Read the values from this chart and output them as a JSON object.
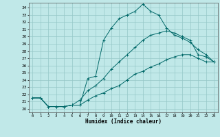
{
  "xlabel": "Humidex (Indice chaleur)",
  "bg_color": "#c0e8e8",
  "grid_color": "#96c8c8",
  "line_color": "#006868",
  "xlim": [
    -0.5,
    23.5
  ],
  "ylim": [
    19.5,
    34.7
  ],
  "xticks": [
    0,
    1,
    2,
    3,
    4,
    5,
    6,
    7,
    8,
    9,
    10,
    11,
    12,
    13,
    14,
    15,
    16,
    17,
    18,
    19,
    20,
    21,
    22,
    23
  ],
  "yticks": [
    20,
    21,
    22,
    23,
    24,
    25,
    26,
    27,
    28,
    29,
    30,
    31,
    32,
    33,
    34
  ],
  "line1_x": [
    0,
    1,
    2,
    3,
    4,
    5,
    6,
    7,
    8,
    9,
    10,
    11,
    12,
    13,
    14,
    15,
    16,
    17,
    18,
    19,
    20,
    21,
    22,
    23
  ],
  "line1_y": [
    21.5,
    21.5,
    20.3,
    20.3,
    20.3,
    20.5,
    20.5,
    24.2,
    24.5,
    29.5,
    31.2,
    32.5,
    33.0,
    33.5,
    34.5,
    33.5,
    33.0,
    31.2,
    30.2,
    29.8,
    29.2,
    28.2,
    27.5,
    26.5
  ],
  "line2_x": [
    0,
    1,
    2,
    3,
    4,
    5,
    6,
    7,
    8,
    9,
    10,
    11,
    12,
    13,
    14,
    15,
    16,
    17,
    18,
    19,
    20,
    21,
    22,
    23
  ],
  "line2_y": [
    21.5,
    21.5,
    20.3,
    20.3,
    20.3,
    20.5,
    21.2,
    22.5,
    23.2,
    24.2,
    25.5,
    26.5,
    27.5,
    28.5,
    29.5,
    30.2,
    30.5,
    30.8,
    30.5,
    30.0,
    29.5,
    27.5,
    27.2,
    26.5
  ],
  "line3_x": [
    0,
    1,
    2,
    3,
    4,
    5,
    6,
    7,
    8,
    9,
    10,
    11,
    12,
    13,
    14,
    15,
    16,
    17,
    18,
    19,
    20,
    21,
    22,
    23
  ],
  "line3_y": [
    21.5,
    21.5,
    20.3,
    20.3,
    20.3,
    20.5,
    20.5,
    21.2,
    21.8,
    22.2,
    22.8,
    23.2,
    24.0,
    24.8,
    25.2,
    25.8,
    26.2,
    26.8,
    27.2,
    27.5,
    27.5,
    27.0,
    26.5,
    26.5
  ]
}
